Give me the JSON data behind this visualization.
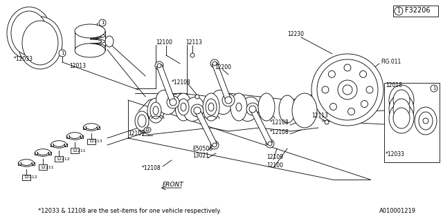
{
  "background_color": "#ffffff",
  "fig_number": "F32206",
  "fig_ref": "FIG.011",
  "diagram_id": "A010001219",
  "footnote": "*12033 & 12108 are the set-items for one vehicle respectively.",
  "lc": "#000000",
  "lw": 0.6
}
